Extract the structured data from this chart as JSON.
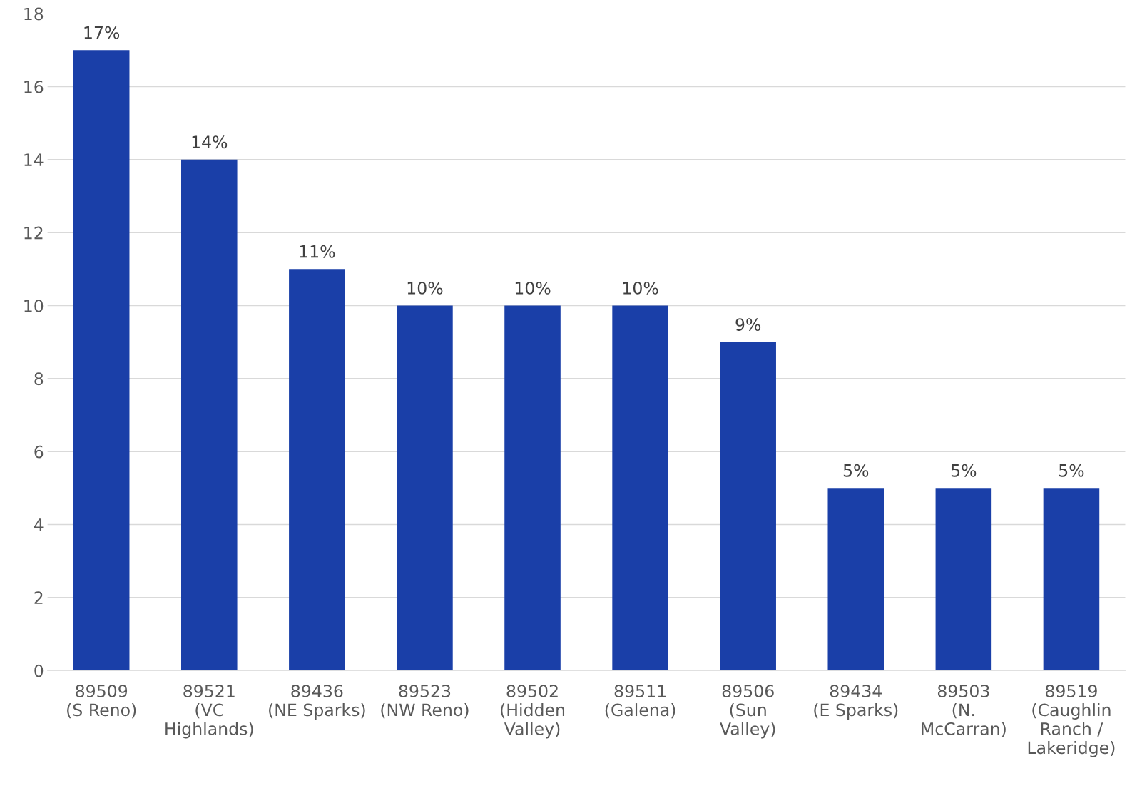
{
  "chart_data": {
    "type": "bar",
    "categories": [
      "89509\n(S Reno)",
      "89521\n(VC\nHighlands)",
      "89436\n(NE Sparks)",
      "89523\n(NW Reno)",
      "89502\n(Hidden\nValley)",
      "89511\n(Galena)",
      "89506\n(Sun\nValley)",
      "89434\n(E Sparks)",
      "89503\n(N.\nMcCarran)",
      "89519\n(Caughlin\nRanch /\nLakeridge)"
    ],
    "values": [
      17,
      14,
      11,
      10,
      10,
      10,
      9,
      5,
      5,
      5
    ],
    "value_labels": [
      "17%",
      "14%",
      "11%",
      "10%",
      "10%",
      "10%",
      "9%",
      "5%",
      "5%",
      "5%"
    ],
    "color": "#1a3fa8",
    "ylim": [
      0,
      18
    ],
    "yticks": [
      0,
      2,
      4,
      6,
      8,
      10,
      12,
      14,
      16,
      18
    ],
    "grid": "y",
    "legend": false
  }
}
